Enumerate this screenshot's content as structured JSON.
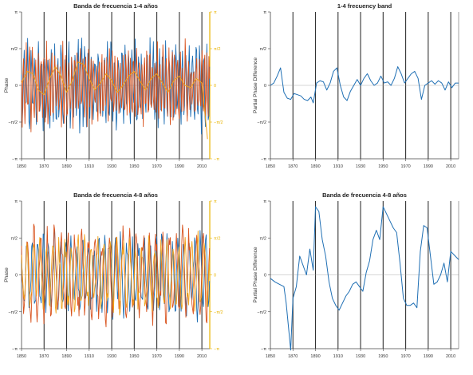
{
  "colors": {
    "blue": "#1f6fb4",
    "red": "#d9531e",
    "orange": "#f0a21b",
    "vline": "#333333",
    "axis": "#444444",
    "right_axis": "#e8b400"
  },
  "chart_data": [
    {
      "type": "line",
      "title": "Banda de frecuencia 1-4 años",
      "ylabel": "Phase",
      "xlim": [
        1850,
        2017
      ],
      "ylim": [
        -3.1416,
        3.1416
      ],
      "x_ticks": [
        "1850",
        "1870",
        "1890",
        "1910",
        "1930",
        "1950",
        "1970",
        "1990",
        "2010"
      ],
      "y_tick_labels": [
        "π",
        "π/2",
        "0",
        "−π/2",
        "−π"
      ],
      "right_tick_labels": [
        "π",
        "π/2",
        "0",
        "−π/2",
        "−π"
      ],
      "vlines": [
        1870,
        1890,
        1910,
        1930,
        1950,
        1970,
        1990,
        2010
      ],
      "series": [
        {
          "color_key": "blue",
          "kind": "oscillation",
          "period": 3.0,
          "amplitude": 1.7,
          "seed": 11,
          "values": []
        },
        {
          "color_key": "red",
          "kind": "oscillation",
          "period": 2.4,
          "amplitude": 1.6,
          "seed": 23,
          "values": []
        },
        {
          "color_key": "orange",
          "x": [
            1850,
            1855,
            1860,
            1865,
            1870,
            1875,
            1880,
            1885,
            1890,
            1895,
            1900,
            1905,
            1910,
            1915,
            1920,
            1925,
            1930,
            1935,
            1940,
            1945,
            1950,
            1955,
            1960,
            1965,
            1970,
            1975,
            1980,
            1985,
            1990,
            1995,
            2000,
            2005,
            2010,
            2015
          ],
          "values": [
            0.1,
            0.6,
            0.5,
            -0.2,
            -0.4,
            0.3,
            0.8,
            0.4,
            -0.3,
            0.2,
            1.0,
            0.9,
            0.3,
            -0.2,
            0.1,
            0.5,
            0.2,
            -0.3,
            0.0,
            0.4,
            0.6,
            0.2,
            -0.2,
            0.3,
            0.5,
            0.1,
            -0.3,
            0.2,
            0.4,
            0.0,
            -0.1,
            0.3,
            0.1,
            -2.3
          ]
        }
      ]
    },
    {
      "type": "line",
      "title": "1-4 frecuency band",
      "ylabel": "Partial Phase Difference",
      "xlim": [
        1850,
        2017
      ],
      "ylim": [
        -3.1416,
        3.1416
      ],
      "x_ticks": [
        "1850",
        "1870",
        "1890",
        "1910",
        "1930",
        "1950",
        "1970",
        "1990",
        "2010"
      ],
      "y_tick_labels": [
        "π",
        "π/2",
        "0",
        "−π/2",
        "−π"
      ],
      "vlines": [
        1870,
        1890,
        1910,
        1930,
        1950,
        1970,
        1990,
        2010
      ],
      "series": [
        {
          "color_key": "blue",
          "x": [
            1850,
            1853,
            1856,
            1859,
            1862,
            1865,
            1868,
            1871,
            1874,
            1877,
            1880,
            1883,
            1886,
            1888,
            1891,
            1894,
            1897,
            1900,
            1903,
            1906,
            1909,
            1912,
            1915,
            1918,
            1921,
            1924,
            1927,
            1930,
            1933,
            1936,
            1939,
            1942,
            1945,
            1948,
            1951,
            1954,
            1957,
            1960,
            1963,
            1966,
            1969,
            1972,
            1975,
            1978,
            1981,
            1984,
            1987,
            1990,
            1993,
            1996,
            1999,
            2002,
            2005,
            2008,
            2011,
            2014,
            2017
          ],
          "values": [
            0.0,
            0.1,
            0.4,
            0.75,
            -0.3,
            -0.55,
            -0.6,
            -0.35,
            -0.4,
            -0.45,
            -0.6,
            -0.65,
            -0.5,
            -0.75,
            0.1,
            0.2,
            0.15,
            -0.2,
            0.1,
            0.6,
            0.75,
            0.0,
            -0.5,
            -0.65,
            -0.25,
            0.0,
            0.25,
            0.0,
            0.3,
            0.5,
            0.2,
            0.0,
            0.1,
            0.4,
            0.1,
            0.15,
            0.0,
            0.3,
            0.8,
            0.5,
            0.1,
            0.3,
            0.5,
            0.6,
            0.3,
            -0.6,
            0.0,
            0.1,
            0.2,
            0.05,
            0.2,
            0.1,
            -0.2,
            0.15,
            -0.1,
            0.1,
            0.1
          ]
        }
      ]
    },
    {
      "type": "line",
      "title": "Banda de frecuencia 4-8 años",
      "ylabel": "Phase",
      "xlim": [
        1850,
        2017
      ],
      "ylim": [
        -3.1416,
        3.1416
      ],
      "x_ticks": [
        "1850",
        "1870",
        "1890",
        "1910",
        "1930",
        "1950",
        "1970",
        "1990",
        "2010"
      ],
      "y_tick_labels": [
        "π",
        "π/2",
        "0",
        "−π/2",
        "−π"
      ],
      "right_tick_labels": [
        "π",
        "π/2",
        "0",
        "−π/2",
        "−π"
      ],
      "vlines": [
        1870,
        1890,
        1910,
        1930,
        1950,
        1970,
        1990,
        2010
      ],
      "series": [
        {
          "color_key": "blue",
          "kind": "oscillation",
          "period": 5.0,
          "amplitude": 1.6,
          "seed": 37,
          "values": []
        },
        {
          "color_key": "red",
          "kind": "oscillation",
          "period": 6.0,
          "amplitude": 1.9,
          "seed": 41,
          "values": []
        },
        {
          "color_key": "orange",
          "kind": "oscillation",
          "period": 5.5,
          "amplitude": 1.5,
          "seed": 53,
          "values": []
        }
      ]
    },
    {
      "type": "line",
      "title": "Banda de frecuencia 4-8 años",
      "ylabel": "Partial Phase Difference",
      "xlim": [
        1850,
        2017
      ],
      "ylim": [
        -3.1416,
        3.1416
      ],
      "x_ticks": [
        "1850",
        "1870",
        "1890",
        "1910",
        "1930",
        "1950",
        "1970",
        "1990",
        "2010"
      ],
      "y_tick_labels": [
        "π",
        "π/2",
        "0",
        "−π/2",
        "−π"
      ],
      "vlines": [
        1870,
        1890,
        1910,
        1930,
        1950,
        1970,
        1990,
        2010
      ],
      "series": [
        {
          "color_key": "blue",
          "x": [
            1850,
            1854,
            1858,
            1862,
            1864,
            1866,
            1868,
            1870,
            1873,
            1876,
            1879,
            1882,
            1885,
            1888,
            1890,
            1893,
            1896,
            1899,
            1902,
            1905,
            1908,
            1911,
            1914,
            1917,
            1920,
            1923,
            1926,
            1929,
            1932,
            1935,
            1938,
            1941,
            1944,
            1947,
            1950,
            1953,
            1956,
            1959,
            1962,
            1965,
            1968,
            1971,
            1974,
            1977,
            1980,
            1983,
            1986,
            1989,
            1992,
            1995,
            1998,
            2001,
            2004,
            2007,
            2010,
            2013,
            2017
          ],
          "values": [
            -0.15,
            -0.3,
            -0.4,
            -0.5,
            -1.2,
            -2.2,
            -3.2,
            -1.0,
            -0.5,
            0.8,
            0.4,
            0.0,
            1.1,
            0.2,
            2.9,
            2.7,
            1.5,
            0.8,
            -0.3,
            -1.0,
            -1.3,
            -1.5,
            -1.2,
            -0.9,
            -0.7,
            -0.4,
            -0.3,
            -0.5,
            -0.7,
            0.1,
            0.6,
            1.5,
            1.9,
            1.5,
            2.9,
            2.6,
            2.3,
            2.0,
            1.8,
            0.5,
            -1.0,
            -1.3,
            -1.3,
            -1.2,
            -1.4,
            1.0,
            2.1,
            2.0,
            0.8,
            -0.4,
            -0.3,
            0.0,
            0.5,
            -0.3,
            1.0,
            0.85,
            0.65
          ]
        }
      ]
    }
  ]
}
